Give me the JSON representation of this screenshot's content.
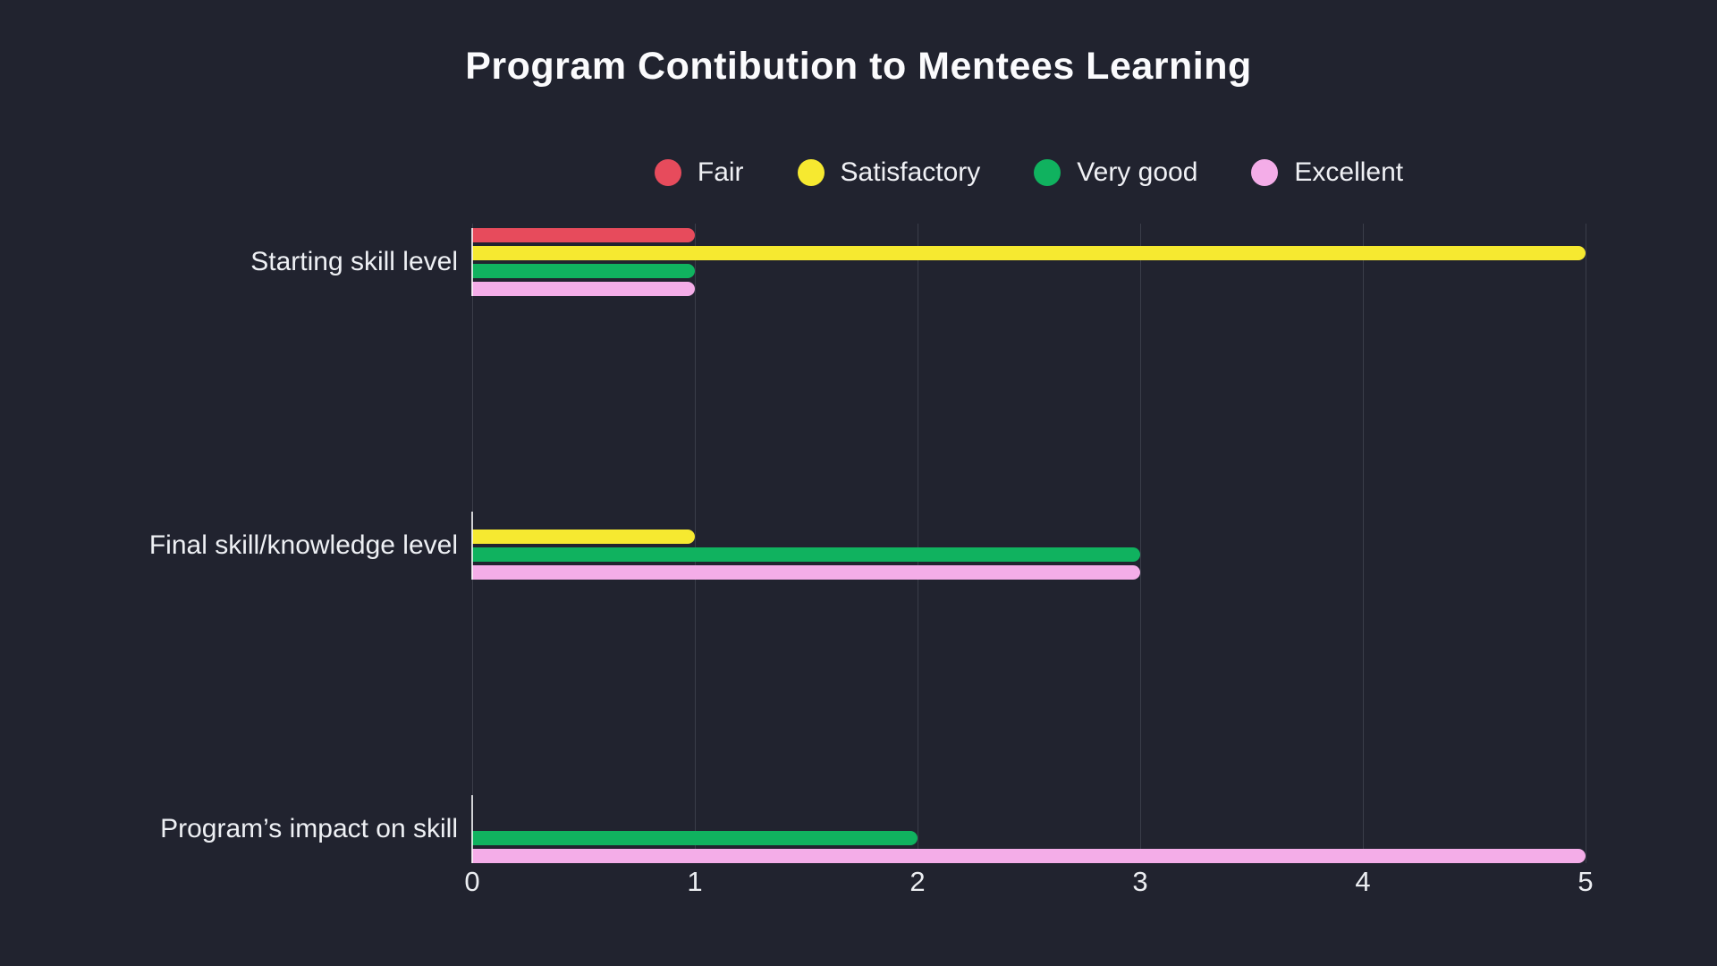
{
  "title": "Program Contibution to Mentees Learning",
  "colors": {
    "background": "#21232f",
    "text": "#f0f1f5",
    "grid": "#3a3d49",
    "fair": "#e74b5c",
    "satisfactory": "#f6e930",
    "very_good": "#10b25f",
    "excellent": "#f4ade8"
  },
  "legend": [
    {
      "label": "Fair",
      "color": "#e74b5c"
    },
    {
      "label": "Satisfactory",
      "color": "#f6e930"
    },
    {
      "label": "Very good",
      "color": "#10b25f"
    },
    {
      "label": "Excellent",
      "color": "#f4ade8"
    }
  ],
  "chart_data": {
    "type": "bar",
    "orientation": "horizontal",
    "title": "Program Contibution to Mentees Learning",
    "categories": [
      "Starting skill level",
      "Final skill/knowledge level",
      "Program’s impact on skill"
    ],
    "series": [
      {
        "name": "Fair",
        "color": "#e74b5c",
        "values": [
          1,
          0,
          0
        ]
      },
      {
        "name": "Satisfactory",
        "color": "#f6e930",
        "values": [
          5,
          1,
          0
        ]
      },
      {
        "name": "Very good",
        "color": "#10b25f",
        "values": [
          1,
          3,
          2
        ]
      },
      {
        "name": "Excellent",
        "color": "#f4ade8",
        "values": [
          1,
          3,
          5
        ]
      }
    ],
    "x_ticks": [
      0,
      1,
      2,
      3,
      4,
      5
    ],
    "xlim": [
      0,
      5
    ],
    "xlabel": "",
    "ylabel": "",
    "grid": true,
    "legend_position": "top"
  }
}
